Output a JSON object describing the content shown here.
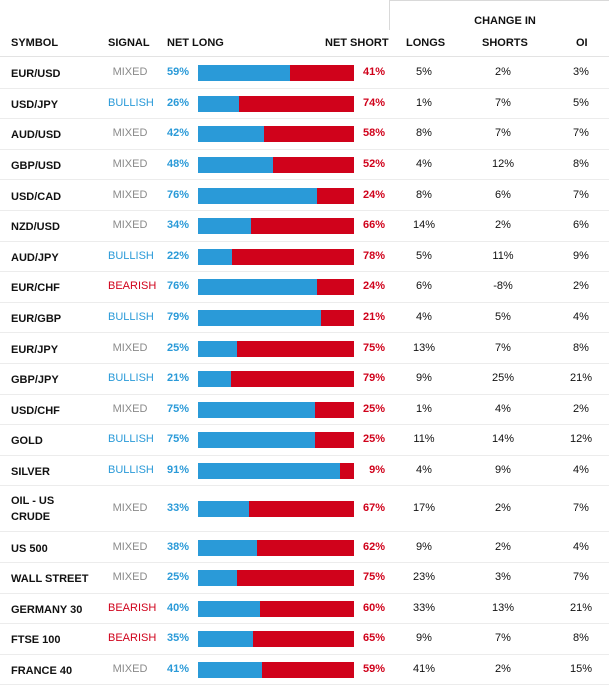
{
  "header": {
    "group_label": "CHANGE IN",
    "symbol": "SYMBOL",
    "signal": "SIGNAL",
    "net_long": "NET LONG",
    "net_short": "NET SHORT",
    "longs": "LONGS",
    "shorts": "SHORTS",
    "oi": "OI"
  },
  "colors": {
    "long": "#2a9ad8",
    "short": "#d0021b",
    "mixed": "#8a8a8a"
  },
  "rows": [
    {
      "symbol": "EUR/USD",
      "signal": "MIXED",
      "net_long": "59%",
      "long_pct": 59,
      "net_short": "41%",
      "longs": "5%",
      "shorts": "2%",
      "oi": "3%"
    },
    {
      "symbol": "USD/JPY",
      "signal": "BULLISH",
      "net_long": "26%",
      "long_pct": 26,
      "net_short": "74%",
      "longs": "1%",
      "shorts": "7%",
      "oi": "5%"
    },
    {
      "symbol": "AUD/USD",
      "signal": "MIXED",
      "net_long": "42%",
      "long_pct": 42,
      "net_short": "58%",
      "longs": "8%",
      "shorts": "7%",
      "oi": "7%"
    },
    {
      "symbol": "GBP/USD",
      "signal": "MIXED",
      "net_long": "48%",
      "long_pct": 48,
      "net_short": "52%",
      "longs": "4%",
      "shorts": "12%",
      "oi": "8%"
    },
    {
      "symbol": "USD/CAD",
      "signal": "MIXED",
      "net_long": "76%",
      "long_pct": 76,
      "net_short": "24%",
      "longs": "8%",
      "shorts": "6%",
      "oi": "7%"
    },
    {
      "symbol": "NZD/USD",
      "signal": "MIXED",
      "net_long": "34%",
      "long_pct": 34,
      "net_short": "66%",
      "longs": "14%",
      "shorts": "2%",
      "oi": "6%"
    },
    {
      "symbol": "AUD/JPY",
      "signal": "BULLISH",
      "net_long": "22%",
      "long_pct": 22,
      "net_short": "78%",
      "longs": "5%",
      "shorts": "11%",
      "oi": "9%"
    },
    {
      "symbol": "EUR/CHF",
      "signal": "BEARISH",
      "net_long": "76%",
      "long_pct": 76,
      "net_short": "24%",
      "longs": "6%",
      "shorts": "-8%",
      "oi": "2%"
    },
    {
      "symbol": "EUR/GBP",
      "signal": "BULLISH",
      "net_long": "79%",
      "long_pct": 79,
      "net_short": "21%",
      "longs": "4%",
      "shorts": "5%",
      "oi": "4%"
    },
    {
      "symbol": "EUR/JPY",
      "signal": "MIXED",
      "net_long": "25%",
      "long_pct": 25,
      "net_short": "75%",
      "longs": "13%",
      "shorts": "7%",
      "oi": "8%"
    },
    {
      "symbol": "GBP/JPY",
      "signal": "BULLISH",
      "net_long": "21%",
      "long_pct": 21,
      "net_short": "79%",
      "longs": "9%",
      "shorts": "25%",
      "oi": "21%"
    },
    {
      "symbol": "USD/CHF",
      "signal": "MIXED",
      "net_long": "75%",
      "long_pct": 75,
      "net_short": "25%",
      "longs": "1%",
      "shorts": "4%",
      "oi": "2%"
    },
    {
      "symbol": "GOLD",
      "signal": "BULLISH",
      "net_long": "75%",
      "long_pct": 75,
      "net_short": "25%",
      "longs": "11%",
      "shorts": "14%",
      "oi": "12%"
    },
    {
      "symbol": "SILVER",
      "signal": "BULLISH",
      "net_long": "91%",
      "long_pct": 91,
      "net_short": "9%",
      "longs": "4%",
      "shorts": "9%",
      "oi": "4%"
    },
    {
      "symbol": "OIL - US CRUDE",
      "symbol_line1": "OIL - US",
      "symbol_line2": "CRUDE",
      "signal": "MIXED",
      "net_long": "33%",
      "long_pct": 33,
      "net_short": "67%",
      "longs": "17%",
      "shorts": "2%",
      "oi": "7%"
    },
    {
      "symbol": "US 500",
      "signal": "MIXED",
      "net_long": "38%",
      "long_pct": 38,
      "net_short": "62%",
      "longs": "9%",
      "shorts": "2%",
      "oi": "4%"
    },
    {
      "symbol": "WALL STREET",
      "signal": "MIXED",
      "net_long": "25%",
      "long_pct": 25,
      "net_short": "75%",
      "longs": "23%",
      "shorts": "3%",
      "oi": "7%"
    },
    {
      "symbol": "GERMANY 30",
      "signal": "BEARISH",
      "net_long": "40%",
      "long_pct": 40,
      "net_short": "60%",
      "longs": "33%",
      "shorts": "13%",
      "oi": "21%"
    },
    {
      "symbol": "FTSE 100",
      "signal": "BEARISH",
      "net_long": "35%",
      "long_pct": 35,
      "net_short": "65%",
      "longs": "9%",
      "shorts": "7%",
      "oi": "8%"
    },
    {
      "symbol": "FRANCE 40",
      "signal": "MIXED",
      "net_long": "41%",
      "long_pct": 41,
      "net_short": "59%",
      "longs": "41%",
      "shorts": "2%",
      "oi": "15%"
    }
  ]
}
